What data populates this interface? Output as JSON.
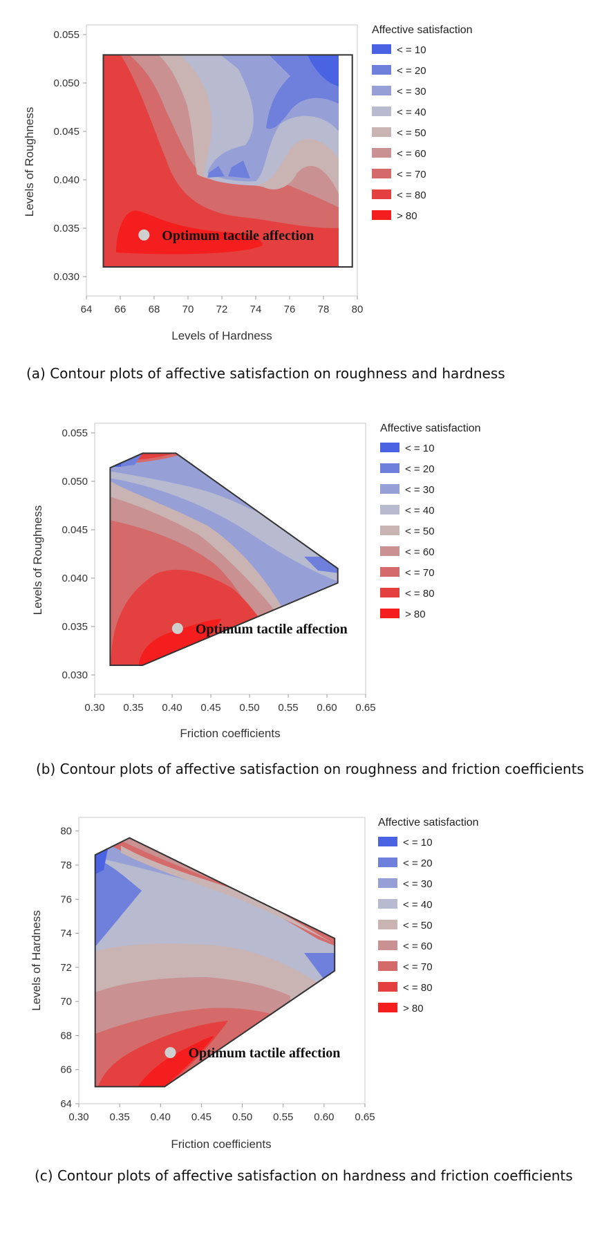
{
  "colors": {
    "levels": [
      "#4a63e3",
      "#6e80dc",
      "#97a0d6",
      "#b8bbd0",
      "#c9b3b3",
      "#c99191",
      "#d46a6a",
      "#e54040",
      "#f51e1e"
    ],
    "frame": "#c8c8c8",
    "border": "#333333",
    "optimum_marker": "#cfcfcf"
  },
  "chart_data": [
    {
      "type": "contour",
      "panel": "a",
      "caption": "(a) Contour plots of affective satisfaction on roughness and hardness",
      "xlabel": "Levels of Hardness",
      "ylabel": "Levels of Roughness",
      "xlim": [
        64,
        80
      ],
      "ylim": [
        0.028,
        0.056
      ],
      "x_ticks": [
        64,
        66,
        68,
        70,
        72,
        74,
        76,
        78,
        80
      ],
      "y_ticks": [
        0.03,
        0.035,
        0.04,
        0.045,
        0.05,
        0.055
      ],
      "x_tick_labels": [
        "64",
        "66",
        "68",
        "70",
        "72",
        "74",
        "76",
        "78",
        "80"
      ],
      "y_tick_labels": [
        "0.030",
        "0.035",
        "0.040",
        "0.045",
        "0.050",
        "0.055"
      ],
      "legend_title": "Affective satisfaction",
      "legend_labels": [
        "< = 10",
        "< = 20",
        "< = 30",
        "< = 40",
        "< = 50",
        "< = 60",
        "< = 70",
        "< = 80",
        "> 80"
      ],
      "annotation": "Optimum tactile affection",
      "optimum": {
        "x": 67.4,
        "y": 0.0343
      },
      "region": [
        [
          65,
          0.031
        ],
        [
          79.7,
          0.031
        ],
        [
          79.7,
          0.0529
        ],
        [
          65,
          0.0529
        ]
      ]
    },
    {
      "type": "contour",
      "panel": "b",
      "caption": "(b) Contour plots of affective satisfaction on roughness and friction coefficients",
      "xlabel": "Friction coefficients",
      "ylabel": "Levels of Roughness",
      "xlim": [
        0.3,
        0.65
      ],
      "ylim": [
        0.028,
        0.056
      ],
      "x_ticks": [
        0.3,
        0.35,
        0.4,
        0.45,
        0.5,
        0.55,
        0.6,
        0.65
      ],
      "y_ticks": [
        0.03,
        0.035,
        0.04,
        0.045,
        0.05,
        0.055
      ],
      "x_tick_labels": [
        "0.30",
        "0.35",
        "0.40",
        "0.45",
        "0.50",
        "0.55",
        "0.60",
        "0.65"
      ],
      "y_tick_labels": [
        "0.030",
        "0.035",
        "0.040",
        "0.045",
        "0.050",
        "0.055"
      ],
      "legend_title": "Affective satisfaction",
      "legend_labels": [
        "< = 10",
        "< = 20",
        "< = 30",
        "< = 40",
        "< = 50",
        "< = 60",
        "< = 70",
        "< = 80",
        "> 80"
      ],
      "annotation": "Optimum tactile affection",
      "optimum": {
        "x": 0.407,
        "y": 0.0348
      },
      "region": [
        [
          0.32,
          0.031
        ],
        [
          0.362,
          0.031
        ],
        [
          0.614,
          0.0395
        ],
        [
          0.614,
          0.041
        ],
        [
          0.405,
          0.0529
        ],
        [
          0.362,
          0.0529
        ],
        [
          0.32,
          0.0514
        ]
      ]
    },
    {
      "type": "contour",
      "panel": "c",
      "caption": "(c) Contour plots of affective satisfaction on hardness and friction coefficients",
      "xlabel": "Friction coefficients",
      "ylabel": "Levels of Hardness",
      "xlim": [
        0.3,
        0.65
      ],
      "ylim": [
        64,
        80.8
      ],
      "x_ticks": [
        0.3,
        0.35,
        0.4,
        0.45,
        0.5,
        0.55,
        0.6,
        0.65
      ],
      "y_ticks": [
        64,
        66,
        68,
        70,
        72,
        74,
        76,
        78,
        80
      ],
      "x_tick_labels": [
        "0.30",
        "0.35",
        "0.40",
        "0.45",
        "0.50",
        "0.55",
        "0.60",
        "0.65"
      ],
      "y_tick_labels": [
        "64",
        "66",
        "68",
        "70",
        "72",
        "74",
        "76",
        "78",
        "80"
      ],
      "legend_title": "Affective satisfaction",
      "legend_labels": [
        "< = 10",
        "< = 20",
        "< = 30",
        "< = 40",
        "< = 50",
        "< = 60",
        "< = 70",
        "< = 80",
        "> 80"
      ],
      "annotation": "Optimum tactile affection",
      "optimum": {
        "x": 0.412,
        "y": 67.0
      },
      "region": [
        [
          0.32,
          65
        ],
        [
          0.405,
          65
        ],
        [
          0.613,
          71.8
        ],
        [
          0.613,
          73.7
        ],
        [
          0.362,
          79.6
        ],
        [
          0.32,
          78.6
        ]
      ]
    }
  ]
}
